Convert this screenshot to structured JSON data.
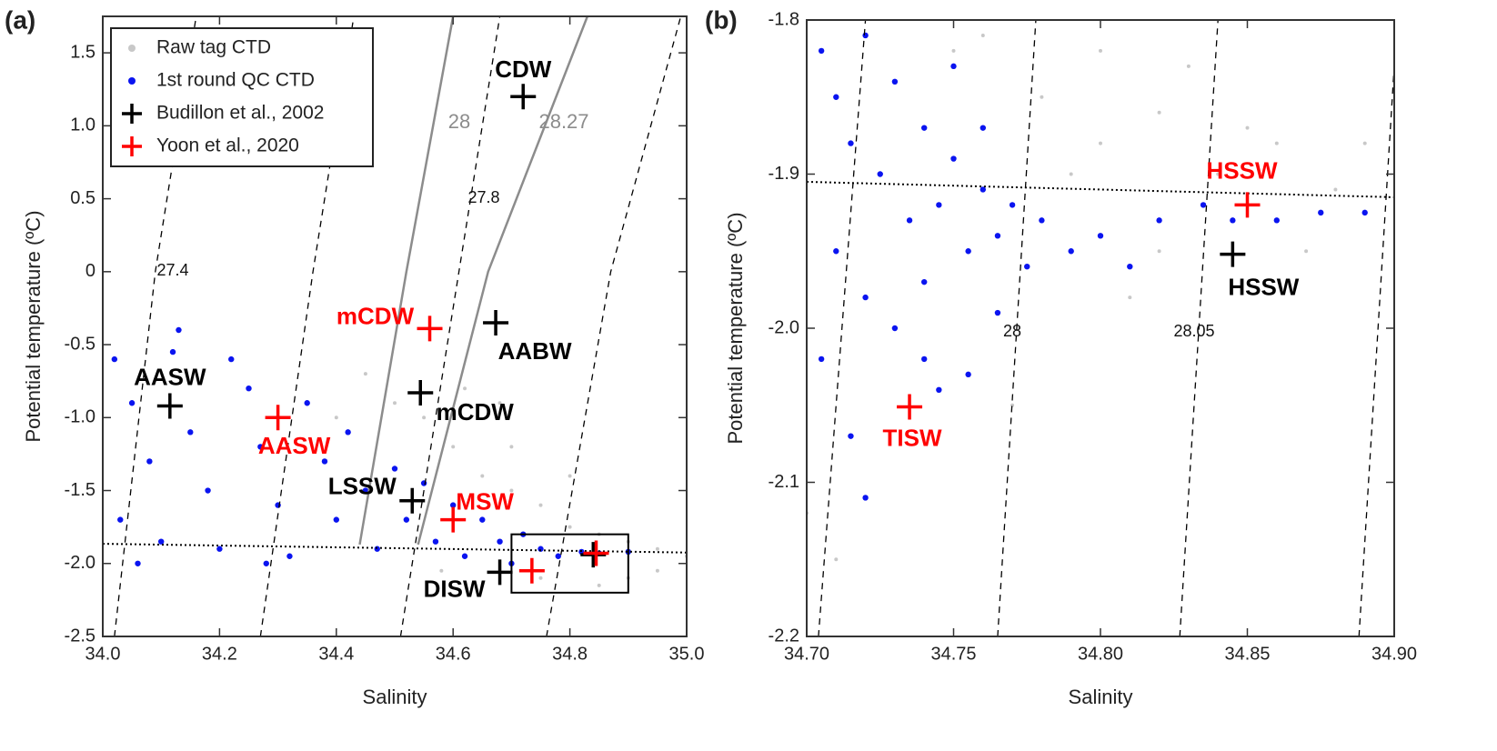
{
  "chart_data": [
    {
      "type": "scatter",
      "title": "(a)",
      "x_label": "Salinity",
      "y_label": "Potential temperature (ºC)",
      "xlim": [
        34.0,
        35.0
      ],
      "xticks": [
        {
          "value": 34,
          "label": "34.0"
        },
        34.2,
        34.4,
        34.6,
        34.8,
        {
          "value": 35,
          "label": "35.0"
        }
      ],
      "ylim": [
        -2.5,
        1.75
      ],
      "yticks": [
        -2.5,
        {
          "value": -2,
          "label": "-2.0"
        },
        -1.5,
        {
          "value": -1,
          "label": "-1.0"
        },
        -0.5,
        0,
        0.5,
        {
          "value": 1,
          "label": "1.0"
        },
        1.5
      ],
      "legend": "upper left",
      "series": [
        {
          "name": "Raw tag CTD",
          "color": "#c8c8c8",
          "marker": "point",
          "x": [
            34.6,
            34.65,
            34.7,
            34.75,
            34.8,
            34.85,
            34.9,
            34.95,
            35.0,
            34.55,
            34.5,
            34.62,
            34.7,
            34.8,
            34.9,
            34.85,
            34.95,
            34.75,
            34.45,
            34.58,
            34.4,
            34.68
          ],
          "y": [
            -1.2,
            -1.4,
            -1.5,
            -1.6,
            -1.75,
            -1.8,
            -1.85,
            -1.9,
            -1.95,
            -1.0,
            -0.9,
            -0.8,
            -1.2,
            -1.4,
            -2.1,
            -2.15,
            -2.05,
            -2.1,
            -0.7,
            -2.05,
            -1.0,
            -0.9
          ]
        },
        {
          "name": "1st round QC CTD",
          "color": "#0a14f0",
          "marker": "point",
          "x": [
            34.02,
            34.05,
            34.08,
            34.03,
            34.1,
            34.12,
            34.15,
            34.18,
            34.2,
            34.22,
            34.25,
            34.27,
            34.3,
            34.32,
            34.35,
            34.38,
            34.4,
            34.42,
            34.45,
            34.47,
            34.5,
            34.52,
            34.55,
            34.57,
            34.6,
            34.62,
            34.65,
            34.68,
            34.7,
            34.72,
            34.75,
            34.78,
            34.82,
            34.85,
            34.13,
            34.06,
            34.28,
            34.9
          ],
          "y": [
            -0.6,
            -0.9,
            -1.3,
            -1.7,
            -1.85,
            -0.55,
            -1.1,
            -1.5,
            -1.9,
            -0.6,
            -0.8,
            -1.2,
            -1.6,
            -1.95,
            -0.9,
            -1.3,
            -1.7,
            -1.1,
            -1.5,
            -1.9,
            -1.35,
            -1.7,
            -1.45,
            -1.85,
            -1.6,
            -1.95,
            -1.7,
            -1.85,
            -2.0,
            -1.8,
            -1.9,
            -1.95,
            -1.92,
            -1.93,
            -0.4,
            -2.0,
            -2.0,
            -1.92
          ]
        },
        {
          "name": "Budillon et al., 2002",
          "color": "#000000",
          "marker": "plus",
          "x": [
            34.72,
            34.673,
            34.544,
            34.115,
            34.53,
            34.68,
            34.84
          ],
          "y": [
            1.2,
            -0.35,
            -0.83,
            -0.92,
            -1.57,
            -2.06,
            -1.94
          ],
          "point_labels": [
            "CDW",
            "AABW",
            "mCDW",
            "AASW",
            "LSSW",
            "DISW",
            null
          ]
        },
        {
          "name": "Yoon et al., 2020",
          "color": "#ff0000",
          "marker": "plus",
          "x": [
            34.56,
            34.3,
            34.6,
            34.735,
            34.845
          ],
          "y": [
            -0.39,
            -1.0,
            -1.7,
            -2.05,
            -1.93
          ],
          "point_labels": [
            "mCDW",
            "AASW",
            "MSW",
            null,
            null
          ]
        }
      ],
      "contours": [
        {
          "level": 27.4,
          "color": "#000000",
          "style": "dashed",
          "x": [
            34.02,
            34.09,
            34.16
          ],
          "y": [
            -2.5,
            0,
            1.75
          ]
        },
        {
          "level": null,
          "color": "#000000",
          "style": "dashed",
          "x": [
            34.27,
            34.36,
            34.43
          ],
          "y": [
            -2.5,
            0,
            1.75
          ]
        },
        {
          "level": 27.8,
          "color": "#000000",
          "style": "dashed",
          "x": [
            34.51,
            34.61,
            34.68
          ],
          "y": [
            -2.5,
            0,
            1.75
          ]
        },
        {
          "level": null,
          "color": "#000000",
          "style": "dashed",
          "x": [
            34.76,
            34.87,
            34.99
          ],
          "y": [
            -2.5,
            0,
            1.75
          ]
        },
        {
          "level": 28,
          "color": "#8c8c8c",
          "style": "solid",
          "x": [
            34.44,
            34.52,
            34.6
          ],
          "y": [
            -1.87,
            0,
            1.75
          ]
        },
        {
          "level": 28.27,
          "color": "#8c8c8c",
          "style": "solid",
          "x": [
            34.54,
            34.66,
            34.83
          ],
          "y": [
            -1.87,
            0,
            1.75
          ]
        }
      ],
      "freezing_line": {
        "x": [
          34.0,
          35.0
        ],
        "y": [
          -1.865,
          -1.925
        ]
      },
      "inset_box": {
        "x": [
          34.7,
          34.9
        ],
        "y": [
          -2.2,
          -1.8
        ]
      }
    },
    {
      "type": "scatter",
      "title": "(b)",
      "x_label": "Salinity",
      "y_label": "Potential temperature (ºC)",
      "xlim": [
        34.7,
        34.9
      ],
      "xticks": [
        {
          "value": 34.7,
          "label": "34.70"
        },
        34.75,
        {
          "value": 34.8,
          "label": "34.80"
        },
        34.85,
        {
          "value": 34.9,
          "label": "34.90"
        }
      ],
      "ylim": [
        -2.2,
        -1.8
      ],
      "yticks": [
        -2.2,
        -2.1,
        {
          "value": -2,
          "label": "-2.0"
        },
        -1.9,
        -1.8
      ],
      "series": [
        {
          "color": "#c8c8c8",
          "marker": "point",
          "x": [
            34.75,
            34.78,
            34.8,
            34.82,
            34.84,
            34.86,
            34.88,
            34.9,
            34.79,
            34.83,
            34.87,
            34.81,
            34.77,
            34.71,
            34.7,
            34.85,
            34.76,
            34.8,
            34.89,
            34.82
          ],
          "y": [
            -1.82,
            -1.85,
            -1.88,
            -1.86,
            -1.9,
            -1.88,
            -1.91,
            -1.84,
            -1.9,
            -1.83,
            -1.95,
            -1.98,
            -2.05,
            -2.15,
            -2.12,
            -1.87,
            -1.81,
            -1.82,
            -1.88,
            -1.95
          ]
        },
        {
          "color": "#0a14f0",
          "marker": "point",
          "x": [
            34.705,
            34.71,
            34.715,
            34.72,
            34.725,
            34.73,
            34.735,
            34.74,
            34.745,
            34.75,
            34.755,
            34.76,
            34.765,
            34.77,
            34.775,
            34.78,
            34.79,
            34.8,
            34.81,
            34.82,
            34.835,
            34.845,
            34.86,
            34.875,
            34.89,
            34.71,
            34.72,
            34.73,
            34.74,
            34.745,
            34.755,
            34.765,
            34.705,
            34.715,
            34.72,
            34.75,
            34.76,
            34.74
          ],
          "y": [
            -1.82,
            -1.85,
            -1.88,
            -1.81,
            -1.9,
            -1.84,
            -1.93,
            -1.87,
            -1.92,
            -1.89,
            -1.95,
            -1.91,
            -1.94,
            -1.92,
            -1.96,
            -1.93,
            -1.95,
            -1.94,
            -1.96,
            -1.93,
            -1.92,
            -1.93,
            -1.93,
            -1.925,
            -1.925,
            -1.95,
            -1.98,
            -2.0,
            -2.02,
            -2.04,
            -2.03,
            -1.99,
            -2.02,
            -2.07,
            -2.11,
            -1.83,
            -1.87,
            -1.97
          ]
        },
        {
          "color": "#000000",
          "marker": "plus",
          "x": [
            34.845
          ],
          "y": [
            -1.952
          ],
          "point_labels": [
            "HSSW"
          ]
        },
        {
          "color": "#ff0000",
          "marker": "plus",
          "x": [
            34.85,
            34.735
          ],
          "y": [
            -1.92,
            -2.051
          ],
          "point_labels": [
            "HSSW",
            "TISW"
          ]
        }
      ],
      "contours": [
        {
          "level": null,
          "color": "#000000",
          "style": "dashed",
          "x": [
            34.704,
            34.72
          ],
          "y": [
            -2.2,
            -1.8
          ]
        },
        {
          "level": 28,
          "color": "#000000",
          "style": "dashed",
          "x": [
            34.765,
            34.778
          ],
          "y": [
            -2.2,
            -1.8
          ]
        },
        {
          "level": 28.05,
          "color": "#000000",
          "style": "dashed",
          "x": [
            34.827,
            34.84
          ],
          "y": [
            -2.2,
            -1.8
          ]
        },
        {
          "level": null,
          "color": "#000000",
          "style": "dashed",
          "x": [
            34.888,
            34.9
          ],
          "y": [
            -2.2,
            -1.83
          ]
        }
      ],
      "freezing_line": {
        "x": [
          34.7,
          34.9
        ],
        "y": [
          -1.905,
          -1.915
        ]
      }
    }
  ]
}
